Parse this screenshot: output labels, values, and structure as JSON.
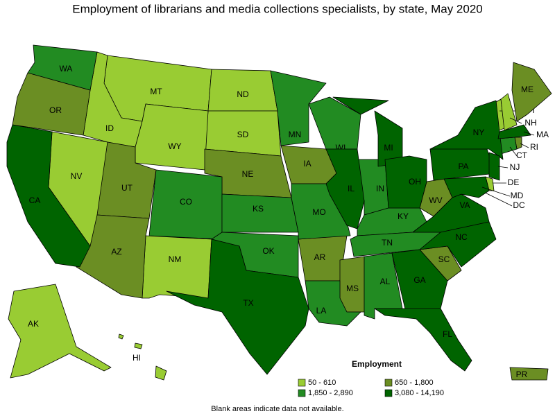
{
  "title": "Employment of librarians and media collections specialists, by state, May 2020",
  "legend": {
    "title": "Employment",
    "items": [
      {
        "label": "50 - 610",
        "color": "#99cc33",
        "states": [
          "MT",
          "ID",
          "ND",
          "SD",
          "WY",
          "NV",
          "NM",
          "AK",
          "HI",
          "VT",
          "NH",
          "DE",
          "DC"
        ]
      },
      {
        "label": "650 - 1,800",
        "color": "#6b8e23",
        "states": [
          "OR",
          "UT",
          "AZ",
          "NE",
          "IA",
          "AR",
          "MS",
          "WV",
          "SC",
          "ME",
          "RI",
          "PR"
        ]
      },
      {
        "label": "1,850 - 2,890",
        "color": "#228b22",
        "states": [
          "WA",
          "CO",
          "KS",
          "MN",
          "WI",
          "MO",
          "OK",
          "IN",
          "KY",
          "TN",
          "AL",
          "LA",
          "CT"
        ]
      },
      {
        "label": "3,080 - 14,190",
        "color": "#006400",
        "states": [
          "CA",
          "TX",
          "IL",
          "MI",
          "OH",
          "PA",
          "NY",
          "NJ",
          "VA",
          "NC",
          "GA",
          "FL",
          "MA",
          "MD"
        ]
      }
    ]
  },
  "footnote": "Blank areas indicate data not available."
}
